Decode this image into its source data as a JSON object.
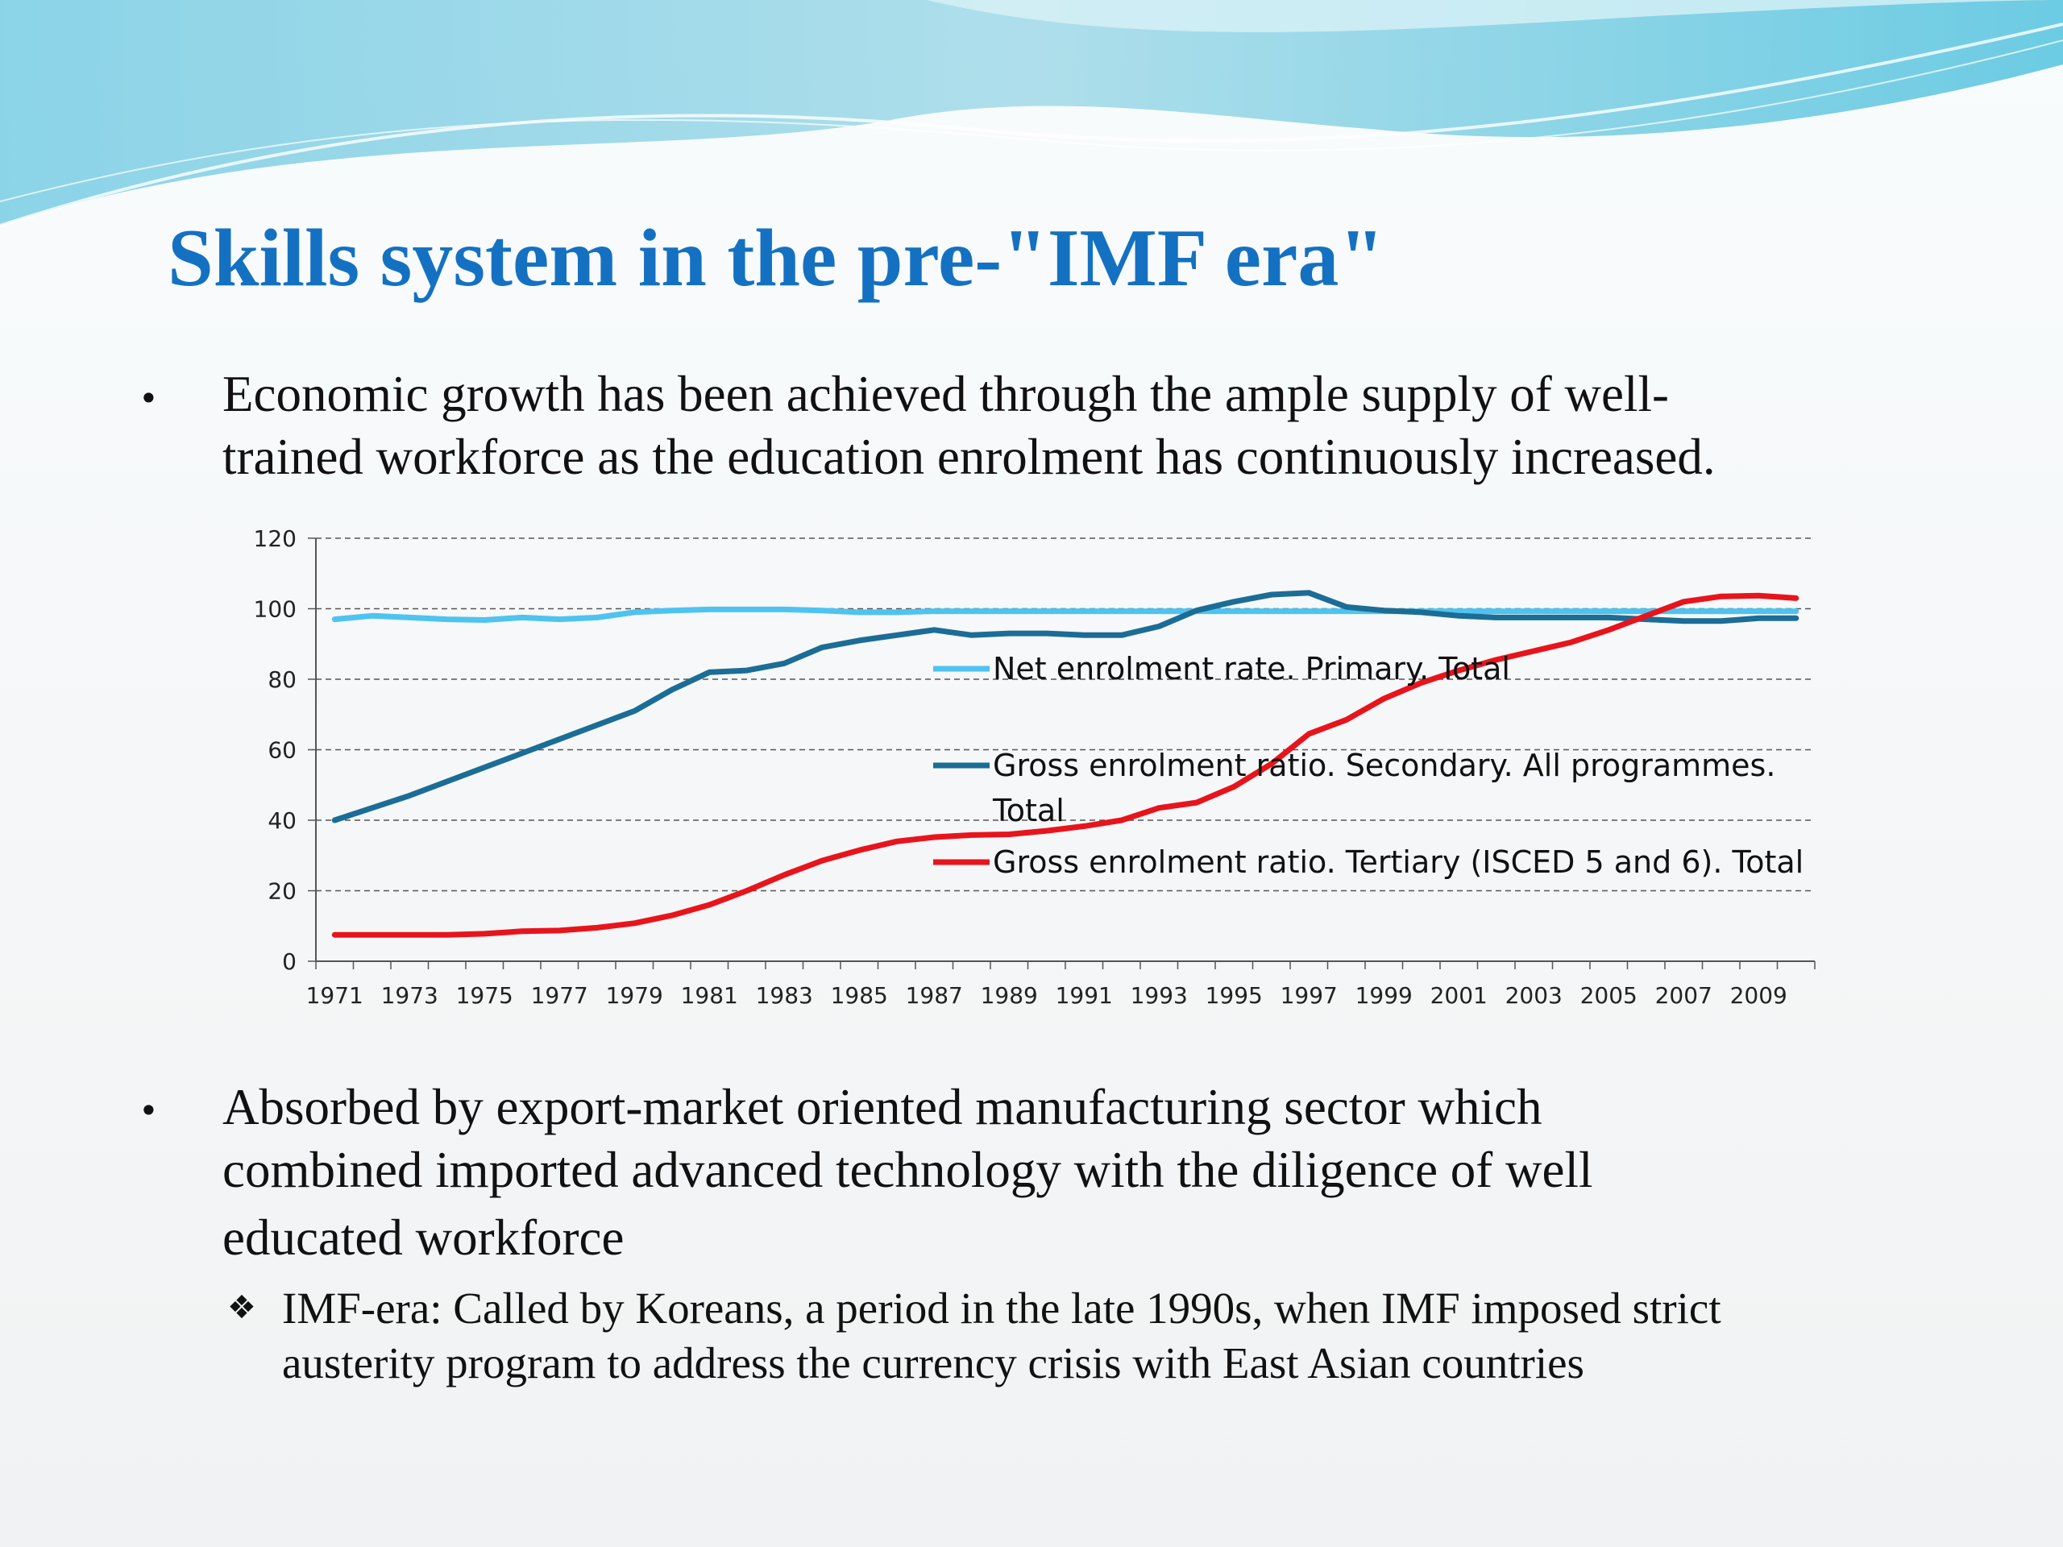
{
  "slide": {
    "title": "Skills system in the pre-\"IMF era\"",
    "bullet1_lines": [
      "Economic growth has been achieved through the ample supply of well-",
      "trained workforce as the education enrolment has continuously increased."
    ],
    "bullet2_lines": [
      "Absorbed by export-market oriented manufacturing sector which",
      "combined imported advanced technology with the diligence of well",
      "educated workforce"
    ],
    "sub_bullet_lines": [
      "IMF-era: Called by Koreans, a period in the late 1990s, when IMF imposed strict",
      "austerity program to address the currency crisis with East Asian countries"
    ],
    "bullet_symbol": "•",
    "sub_bullet_symbol": "❖",
    "title_color": "#1471c2"
  },
  "chart_data": {
    "type": "line",
    "x": [
      1971,
      1972,
      1973,
      1974,
      1975,
      1976,
      1977,
      1978,
      1979,
      1980,
      1981,
      1982,
      1983,
      1984,
      1985,
      1986,
      1987,
      1988,
      1989,
      1990,
      1991,
      1992,
      1993,
      1994,
      1995,
      1996,
      1997,
      1998,
      1999,
      2000,
      2001,
      2002,
      2003,
      2004,
      2005,
      2006,
      2007,
      2008,
      2009,
      2010
    ],
    "x_tick_labels": [
      "1971",
      "1973",
      "1975",
      "1977",
      "1979",
      "1981",
      "1983",
      "1985",
      "1987",
      "1989",
      "1991",
      "1993",
      "1995",
      "1997",
      "1999",
      "2001",
      "2003",
      "2005",
      "2007",
      "2009"
    ],
    "ylim": [
      0,
      120
    ],
    "y_ticks": [
      0,
      20,
      40,
      60,
      80,
      100,
      120
    ],
    "grid": "horizontal dashed",
    "legend_position": "inside, center-right",
    "series": [
      {
        "name": "Net enrolment rate. Primary. Total",
        "color": "#4fc3f0",
        "values": [
          97,
          98,
          97.5,
          97,
          96.8,
          97.5,
          97,
          97.5,
          99,
          99.5,
          99.8,
          99.8,
          99.8,
          99.5,
          99,
          99,
          99.3,
          99.3,
          99.3,
          99.3,
          99.3,
          99.3,
          99.3,
          99.3,
          99.3,
          99.3,
          99.3,
          99.3,
          99.3,
          99.3,
          99.3,
          99.3,
          99.3,
          99.3,
          99.3,
          99.3,
          99.3,
          99.3,
          99.3,
          99.3
        ]
      },
      {
        "name": "Gross enrolment ratio. Secondary. All programmes. Total",
        "color": "#1b6d96",
        "values": [
          40,
          43.5,
          47,
          51,
          55,
          59,
          63,
          67,
          71,
          77,
          82,
          82.5,
          84.5,
          89,
          91,
          92.5,
          94,
          92.5,
          93,
          93,
          92.5,
          92.5,
          95,
          99.5,
          102,
          104,
          104.5,
          100.5,
          99.5,
          99,
          98,
          97.5,
          97.5,
          97.5,
          97.5,
          97,
          96.5,
          96.5,
          97.3,
          97.3
        ]
      },
      {
        "name": "Gross enrolment ratio. Tertiary (ISCED 5 and 6). Total",
        "color": "#e8141c",
        "values": [
          7.5,
          7.5,
          7.5,
          7.5,
          7.8,
          8.5,
          8.7,
          9.5,
          10.8,
          13,
          16,
          20,
          24.5,
          28.5,
          31.5,
          34,
          35.2,
          35.8,
          36,
          37,
          38.3,
          40,
          43.5,
          45,
          49.5,
          56,
          64.5,
          68.5,
          74.5,
          79,
          82.5,
          85.5,
          88,
          90.5,
          94,
          98,
          102,
          103.5,
          103.7,
          103
        ]
      }
    ],
    "legend_labels": [
      [
        "Net enrolment rate. Primary. Total"
      ],
      [
        "Gross enrolment ratio. Secondary. All programmes.",
        "Total"
      ],
      [
        "Gross enrolment ratio. Tertiary (ISCED 5 and 6). Total"
      ]
    ]
  }
}
